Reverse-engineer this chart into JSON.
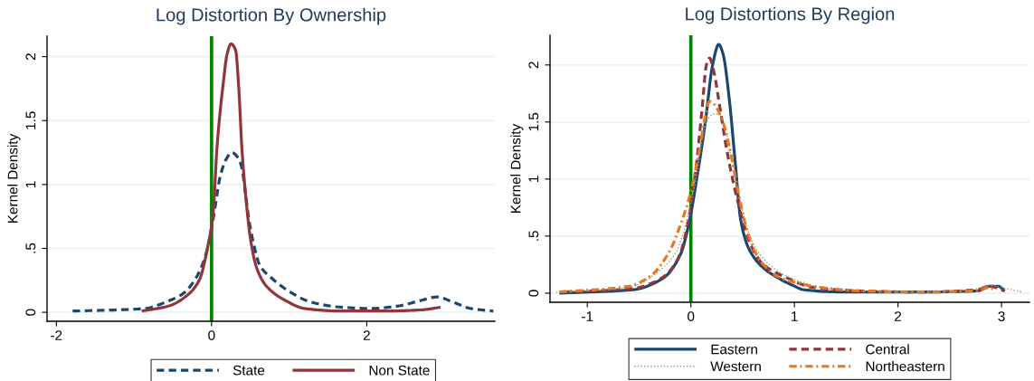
{
  "chart_data": [
    {
      "type": "line",
      "title": "Log Distortion By Ownership",
      "ylabel": "Kernel Density",
      "xlim": [
        -2.12,
        3.65
      ],
      "ylim": [
        -0.07,
        2.16
      ],
      "xticks": [
        -2,
        0,
        2
      ],
      "yticks": [
        0,
        {
          "value": 0.5,
          "label": ".5"
        },
        1,
        1.5,
        2
      ],
      "grid": "y",
      "legend": "bottom",
      "ref_lines": [
        {
          "axis": "x",
          "value": 0,
          "color": "#008000"
        }
      ],
      "series": [
        {
          "name": "State",
          "color": "#1a476f",
          "line_style": "dashed",
          "x": [
            -1.79,
            -1.17,
            -0.86,
            -0.55,
            -0.36,
            -0.2,
            -0.08,
            0.0,
            0.05,
            0.11,
            0.19,
            0.26,
            0.35,
            0.39,
            0.42,
            0.48,
            0.54,
            0.62,
            0.77,
            1.01,
            1.28,
            1.67,
            2.06,
            2.41,
            2.68,
            2.91,
            3.11,
            3.34,
            3.63
          ],
          "values": [
            0.01,
            0.02,
            0.03,
            0.09,
            0.15,
            0.27,
            0.44,
            0.66,
            0.84,
            1.06,
            1.2,
            1.25,
            1.2,
            1.13,
            1.01,
            0.73,
            0.54,
            0.37,
            0.27,
            0.16,
            0.08,
            0.04,
            0.03,
            0.05,
            0.09,
            0.12,
            0.08,
            0.03,
            0.01
          ]
        },
        {
          "name": "Non State",
          "color": "#90353b",
          "line_style": "solid",
          "x": [
            -0.9,
            -0.55,
            -0.32,
            -0.16,
            -0.04,
            0.02,
            0.07,
            0.15,
            0.2,
            0.25,
            0.31,
            0.35,
            0.39,
            0.44,
            0.5,
            0.58,
            0.7,
            0.93,
            1.2,
            1.67,
            2.25,
            2.72,
            2.95
          ],
          "values": [
            0.01,
            0.05,
            0.13,
            0.25,
            0.54,
            0.77,
            1.29,
            1.79,
            2.02,
            2.1,
            2.05,
            1.76,
            1.29,
            0.91,
            0.58,
            0.35,
            0.21,
            0.1,
            0.03,
            0.01,
            0.01,
            0.02,
            0.04
          ]
        }
      ]
    },
    {
      "type": "line",
      "title": "Log Distortions By Region",
      "ylabel": "Kernel Density",
      "xlim": [
        -1.36,
        3.27
      ],
      "ylim": [
        -0.08,
        2.26
      ],
      "xticks": [
        -1,
        0,
        1,
        2,
        3
      ],
      "yticks": [
        0,
        {
          "value": 0.5,
          "label": ".5"
        },
        1,
        1.5,
        2
      ],
      "grid": "y",
      "legend": "bottom",
      "ref_lines": [
        {
          "axis": "x",
          "value": 0,
          "color": "#008000"
        }
      ],
      "series": [
        {
          "name": "Eastern",
          "color": "#1a476f",
          "line_style": "solid",
          "x": [
            -1.27,
            -0.56,
            -0.27,
            -0.1,
            -0.01,
            0.06,
            0.14,
            0.21,
            0.27,
            0.31,
            0.37,
            0.43,
            0.48,
            0.56,
            0.69,
            0.83,
            0.98,
            1.09,
            1.47,
            2.19,
            2.77,
            2.88,
            2.97,
            3.03
          ],
          "values": [
            0.0,
            0.03,
            0.13,
            0.34,
            0.65,
            1.02,
            1.5,
            2.0,
            2.18,
            2.1,
            1.71,
            1.13,
            0.65,
            0.39,
            0.23,
            0.14,
            0.07,
            0.03,
            0.01,
            0.01,
            0.02,
            0.06,
            0.06,
            0.02
          ]
        },
        {
          "name": "Central",
          "color": "#90353b",
          "line_style": "dashed",
          "x": [
            -1.22,
            -0.56,
            -0.27,
            -0.12,
            -0.02,
            0.05,
            0.11,
            0.15,
            0.18,
            0.22,
            0.28,
            0.34,
            0.41,
            0.48,
            0.57,
            0.69,
            0.89,
            1.18,
            1.61,
            2.19,
            2.77,
            2.88,
            3.03
          ],
          "values": [
            0.01,
            0.04,
            0.14,
            0.31,
            0.65,
            1.1,
            1.63,
            2.0,
            2.06,
            1.95,
            1.63,
            1.29,
            0.97,
            0.71,
            0.44,
            0.26,
            0.15,
            0.05,
            0.02,
            0.01,
            0.03,
            0.06,
            0.02
          ]
        },
        {
          "name": "Western",
          "color": "#8da66e",
          "line_style": "dotted",
          "x": [
            -1.3,
            -0.6,
            -0.3,
            -0.15,
            -0.05,
            0.0,
            0.05,
            0.1,
            0.15,
            0.22,
            0.27,
            0.33,
            0.4,
            0.48,
            0.55,
            0.65,
            0.8,
            0.95,
            1.1,
            1.3,
            1.6,
            2.2,
            2.7,
            2.9,
            3.0,
            3.1,
            3.2
          ],
          "values": [
            0.01,
            0.05,
            0.2,
            0.35,
            0.6,
            0.8,
            1.0,
            1.3,
            1.5,
            1.57,
            1.57,
            1.45,
            1.15,
            0.8,
            0.55,
            0.36,
            0.22,
            0.14,
            0.09,
            0.04,
            0.02,
            0.01,
            0.03,
            0.07,
            0.05,
            0.03,
            0.01
          ]
        },
        {
          "name": "Northeastern",
          "color": "#e87722",
          "line_style": "dashdot",
          "x": [
            -1.27,
            -0.6,
            -0.39,
            -0.21,
            -0.1,
            0.0,
            0.08,
            0.14,
            0.18,
            0.22,
            0.31,
            0.37,
            0.44,
            0.5,
            0.56,
            0.66,
            0.83,
            0.98,
            1.18,
            1.61,
            2.19,
            2.77,
            2.88,
            2.94
          ],
          "values": [
            0.01,
            0.06,
            0.15,
            0.36,
            0.6,
            0.89,
            1.24,
            1.55,
            1.68,
            1.66,
            1.5,
            1.29,
            0.97,
            0.7,
            0.5,
            0.3,
            0.15,
            0.1,
            0.06,
            0.02,
            0.01,
            0.02,
            0.05,
            0.02
          ]
        }
      ]
    }
  ]
}
